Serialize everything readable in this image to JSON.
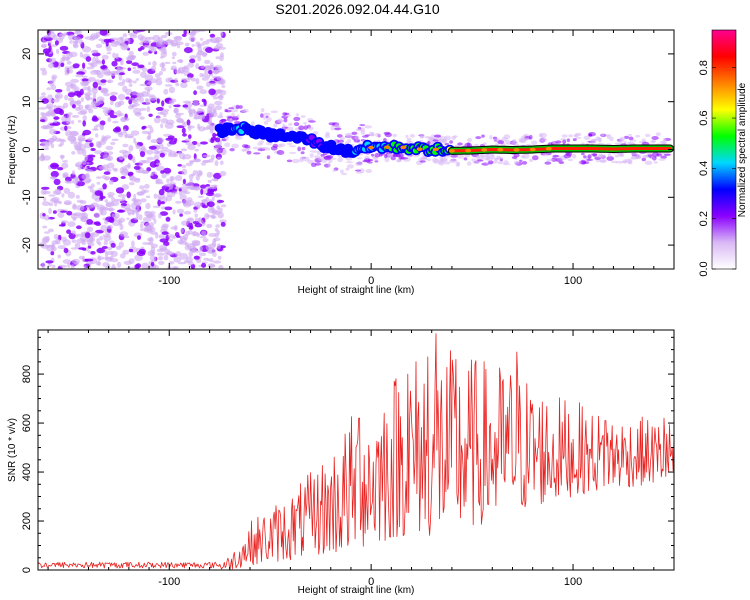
{
  "title": "S201.2026.092.04.44.G10",
  "chart_data": [
    {
      "type": "heatmap",
      "title": "S201.2026.092.04.44.G10",
      "xlabel": "Height of straight line (km)",
      "ylabel": "Frequency (Hz)",
      "xlim": [
        -165,
        150
      ],
      "ylim": [
        -25,
        25
      ],
      "xticks": [
        -100,
        0,
        100
      ],
      "xtick_labels": [
        "-100",
        "0",
        "100"
      ],
      "yticks": [
        -20,
        -10,
        0,
        10,
        20
      ],
      "ytick_labels": [
        "-20",
        "-10",
        "0",
        "10",
        "20"
      ],
      "colorbar": {
        "label": "Normalized spectral amplitude",
        "range": [
          0,
          0.95
        ],
        "ticks": [
          0.0,
          0.2,
          0.4,
          0.6,
          0.8
        ],
        "tick_labels": [
          "0.0",
          "0.2",
          "0.4",
          "0.6",
          "0.8"
        ],
        "colors": [
          "#ffffff",
          "#d9b8f5",
          "#8a00ff",
          "#0000ff",
          "#00d8ff",
          "#00ff00",
          "#ffff00",
          "#ff8000",
          "#ff0000",
          "#ff0090"
        ]
      },
      "noise_region_km": [
        -165,
        -75
      ],
      "ridge": {
        "height_km": [
          -75,
          -70,
          -65,
          -60,
          -55,
          -50,
          -45,
          -40,
          -35,
          -30,
          -25,
          -20,
          -15,
          -10,
          -5,
          0,
          5,
          10,
          15,
          20,
          25,
          30,
          40,
          50,
          60,
          70,
          80,
          90,
          100,
          110,
          120,
          130,
          140,
          148
        ],
        "frequency_hz": [
          4.0,
          4.2,
          4.5,
          4.0,
          3.5,
          3.0,
          3.0,
          2.5,
          2.5,
          2.0,
          1.0,
          0.5,
          0.0,
          -0.5,
          0.3,
          0.4,
          0.6,
          0.4,
          0.5,
          0.3,
          0.0,
          0.1,
          -0.3,
          -0.2,
          0.0,
          -0.1,
          0.0,
          0.2,
          0.2,
          0.2,
          0.1,
          0.2,
          0.2,
          0.2
        ],
        "amplitude": [
          0.3,
          0.35,
          0.4,
          0.35,
          0.3,
          0.35,
          0.3,
          0.3,
          0.3,
          0.25,
          0.25,
          0.3,
          0.3,
          0.35,
          0.4,
          0.4,
          0.45,
          0.5,
          0.55,
          0.5,
          0.55,
          0.5,
          0.6,
          0.6,
          0.65,
          0.7,
          0.75,
          0.8,
          0.85,
          0.9,
          0.9,
          0.92,
          0.93,
          0.95
        ]
      }
    },
    {
      "type": "line",
      "xlabel": "Height of straight line (km)",
      "ylabel": "SNR (10 * v/v)",
      "xlim": [
        -165,
        150
      ],
      "ylim": [
        0,
        980
      ],
      "xticks": [
        -100,
        0,
        100
      ],
      "xtick_labels": [
        "-100",
        "0",
        "100"
      ],
      "yticks": [
        0,
        200,
        400,
        600,
        800
      ],
      "ytick_labels": [
        "0",
        "200",
        "400",
        "600",
        "800"
      ],
      "color": "#e8201e",
      "envelope": {
        "height_km": [
          -165,
          -75,
          -70,
          -60,
          -50,
          -40,
          -30,
          -20,
          -10,
          0,
          10,
          20,
          30,
          40,
          50,
          60,
          70,
          80,
          90,
          100,
          110,
          120,
          130,
          140,
          150
        ],
        "snr_low": [
          0,
          0,
          0,
          20,
          30,
          40,
          60,
          60,
          70,
          100,
          120,
          150,
          130,
          150,
          170,
          200,
          230,
          250,
          280,
          300,
          320,
          330,
          340,
          350,
          360
        ],
        "snr_high": [
          35,
          35,
          60,
          200,
          260,
          320,
          400,
          500,
          640,
          700,
          820,
          880,
          950,
          900,
          880,
          850,
          850,
          780,
          720,
          700,
          650,
          640,
          630,
          620,
          610
        ]
      },
      "peaks": [
        {
          "height_km": -6,
          "snr": 620
        },
        {
          "height_km": 18,
          "snr": 800
        },
        {
          "height_km": 28,
          "snr": 870
        },
        {
          "height_km": 32,
          "snr": 965
        },
        {
          "height_km": 42,
          "snr": 860
        },
        {
          "height_km": 72,
          "snr": 890
        },
        {
          "height_km": 116,
          "snr": 610
        },
        {
          "height_km": 145,
          "snr": 620
        }
      ]
    }
  ]
}
